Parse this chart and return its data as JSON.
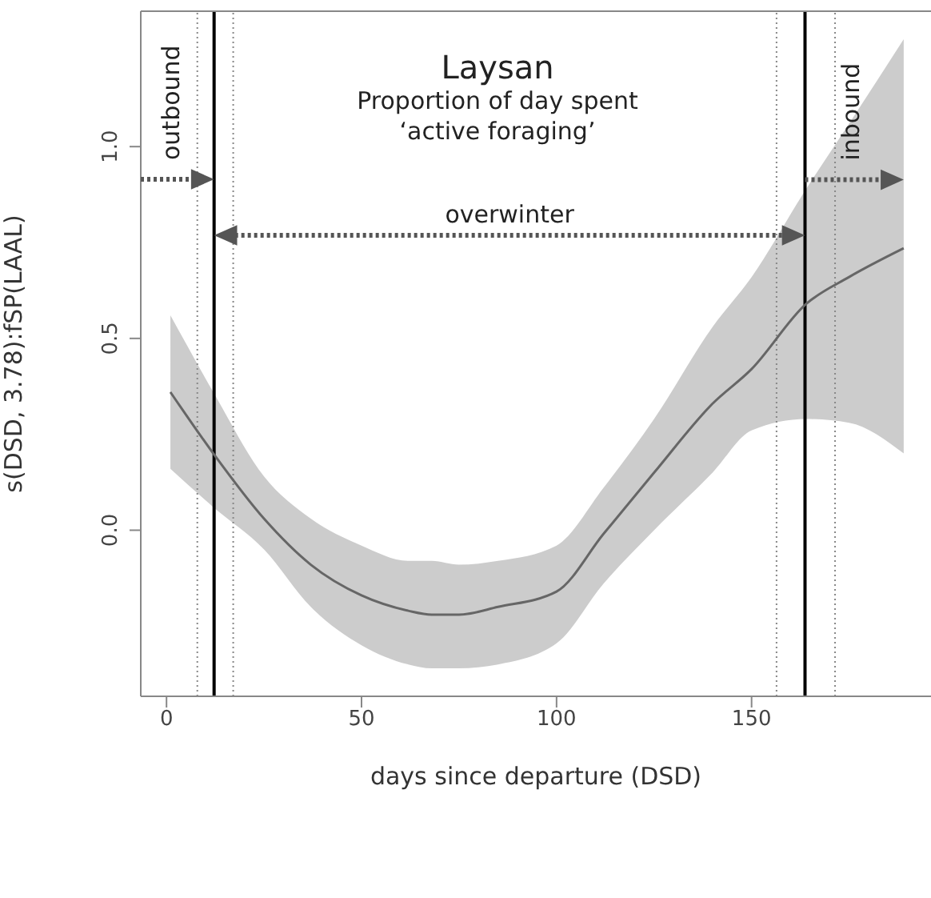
{
  "chart_data": {
    "type": "line",
    "title": "Laysan",
    "subtitle": "Proportion of day spent ‘active foraging’",
    "xlabel": "days since departure (DSD)",
    "ylabel": "s(DSD, 3.78):fSP(LAAL)",
    "x": [
      1,
      12,
      25,
      37,
      50,
      62,
      68,
      75,
      85,
      100,
      112,
      125,
      140,
      150,
      164,
      175,
      189
    ],
    "series": [
      {
        "color": "#666666",
        "values": [
          0.36,
          0.2,
          0.03,
          -0.09,
          -0.17,
          -0.21,
          -0.22,
          -0.22,
          -0.2,
          -0.16,
          -0.01,
          0.15,
          0.33,
          0.42,
          0.59,
          0.66,
          0.735
        ],
        "lower": [
          0.16,
          0.06,
          -0.05,
          -0.2,
          -0.3,
          -0.35,
          -0.36,
          -0.36,
          -0.35,
          -0.295,
          -0.14,
          0.0,
          0.15,
          0.26,
          0.29,
          0.28,
          0.2
        ],
        "upper": [
          0.56,
          0.36,
          0.14,
          0.03,
          -0.04,
          -0.08,
          -0.08,
          -0.09,
          -0.08,
          -0.04,
          0.11,
          0.29,
          0.53,
          0.66,
          0.89,
          1.06,
          1.28
        ]
      }
    ],
    "xlim": [
      -6.6,
      196
    ],
    "xticks": [
      0,
      50,
      100,
      150
    ],
    "ylim": [
      -0.433,
      1.353
    ],
    "yticks": [
      {
        "value": 0,
        "label": "0.0"
      },
      0.5,
      {
        "value": 1,
        "label": "1.0"
      }
    ],
    "ref_lines": [
      {
        "axis": "x",
        "value": 12.2,
        "color": "#000000",
        "line_style": "solid"
      },
      {
        "axis": "x",
        "value": 7.9,
        "color": "#888888",
        "line_style": "dotted"
      },
      {
        "axis": "x",
        "value": 17.1,
        "color": "#888888",
        "line_style": "dotted"
      },
      {
        "axis": "x",
        "value": 163.7,
        "color": "#000000",
        "line_style": "solid"
      },
      {
        "axis": "x",
        "value": 156.4,
        "color": "#888888",
        "line_style": "dotted"
      },
      {
        "axis": "x",
        "value": 171.4,
        "color": "#888888",
        "line_style": "dotted"
      }
    ],
    "annotations": [
      "outbound",
      "overwinter",
      {
        "text": "inbound",
        "x": 189,
        "y": 0.97
      }
    ],
    "grid": false,
    "legend": false,
    "marker": "none",
    "line_style": "solid"
  }
}
